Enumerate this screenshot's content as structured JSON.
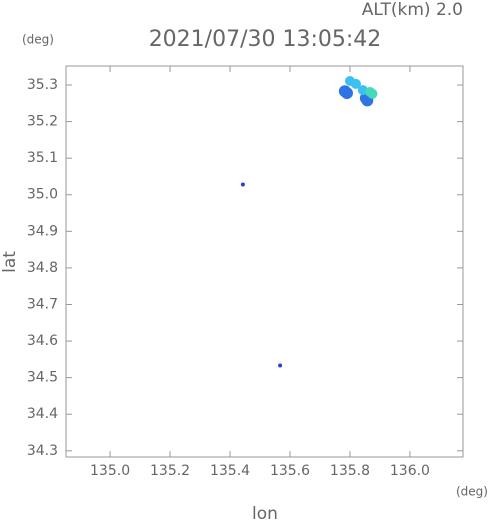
{
  "chart_data": {
    "type": "scatter",
    "title": "2021/07/30 13:05:42",
    "subtitle": "ALT(km) 2.0",
    "x_label": "lon",
    "y_label": "lat",
    "x_unit": "(deg)",
    "y_unit": "(deg)",
    "xlim": [
      134.853,
      136.177
    ],
    "ylim": [
      34.283,
      35.352
    ],
    "xticks": [
      {
        "value": 135,
        "label": "135.0"
      },
      135.2,
      135.4,
      135.6,
      135.8,
      {
        "value": 136,
        "label": "136.0"
      }
    ],
    "yticks": [
      34.3,
      34.4,
      34.5,
      34.6,
      34.7,
      34.8,
      34.9,
      {
        "value": 35,
        "label": "35.0"
      },
      35.1,
      35.2,
      35.3
    ],
    "series": [
      {
        "color": "#2a3fd6",
        "marker_size": 2,
        "x": [
          135.443,
          135.567
        ],
        "values": [
          35.028,
          34.533
        ]
      },
      {
        "color": "#2f74e6",
        "marker_size": 6,
        "x": [
          135.783,
          135.79,
          135.853,
          135.858
        ],
        "values": [
          35.283,
          35.278,
          35.264,
          35.258
        ]
      },
      {
        "color": "#3cc0f0",
        "marker_size": 5,
        "x": [
          135.8,
          135.82,
          135.843
        ],
        "values": [
          35.311,
          35.303,
          35.286
        ]
      },
      {
        "color": "#45d9b8",
        "marker_size": 5,
        "x": [
          135.867,
          135.875
        ],
        "values": [
          35.281,
          35.276
        ]
      }
    ]
  }
}
